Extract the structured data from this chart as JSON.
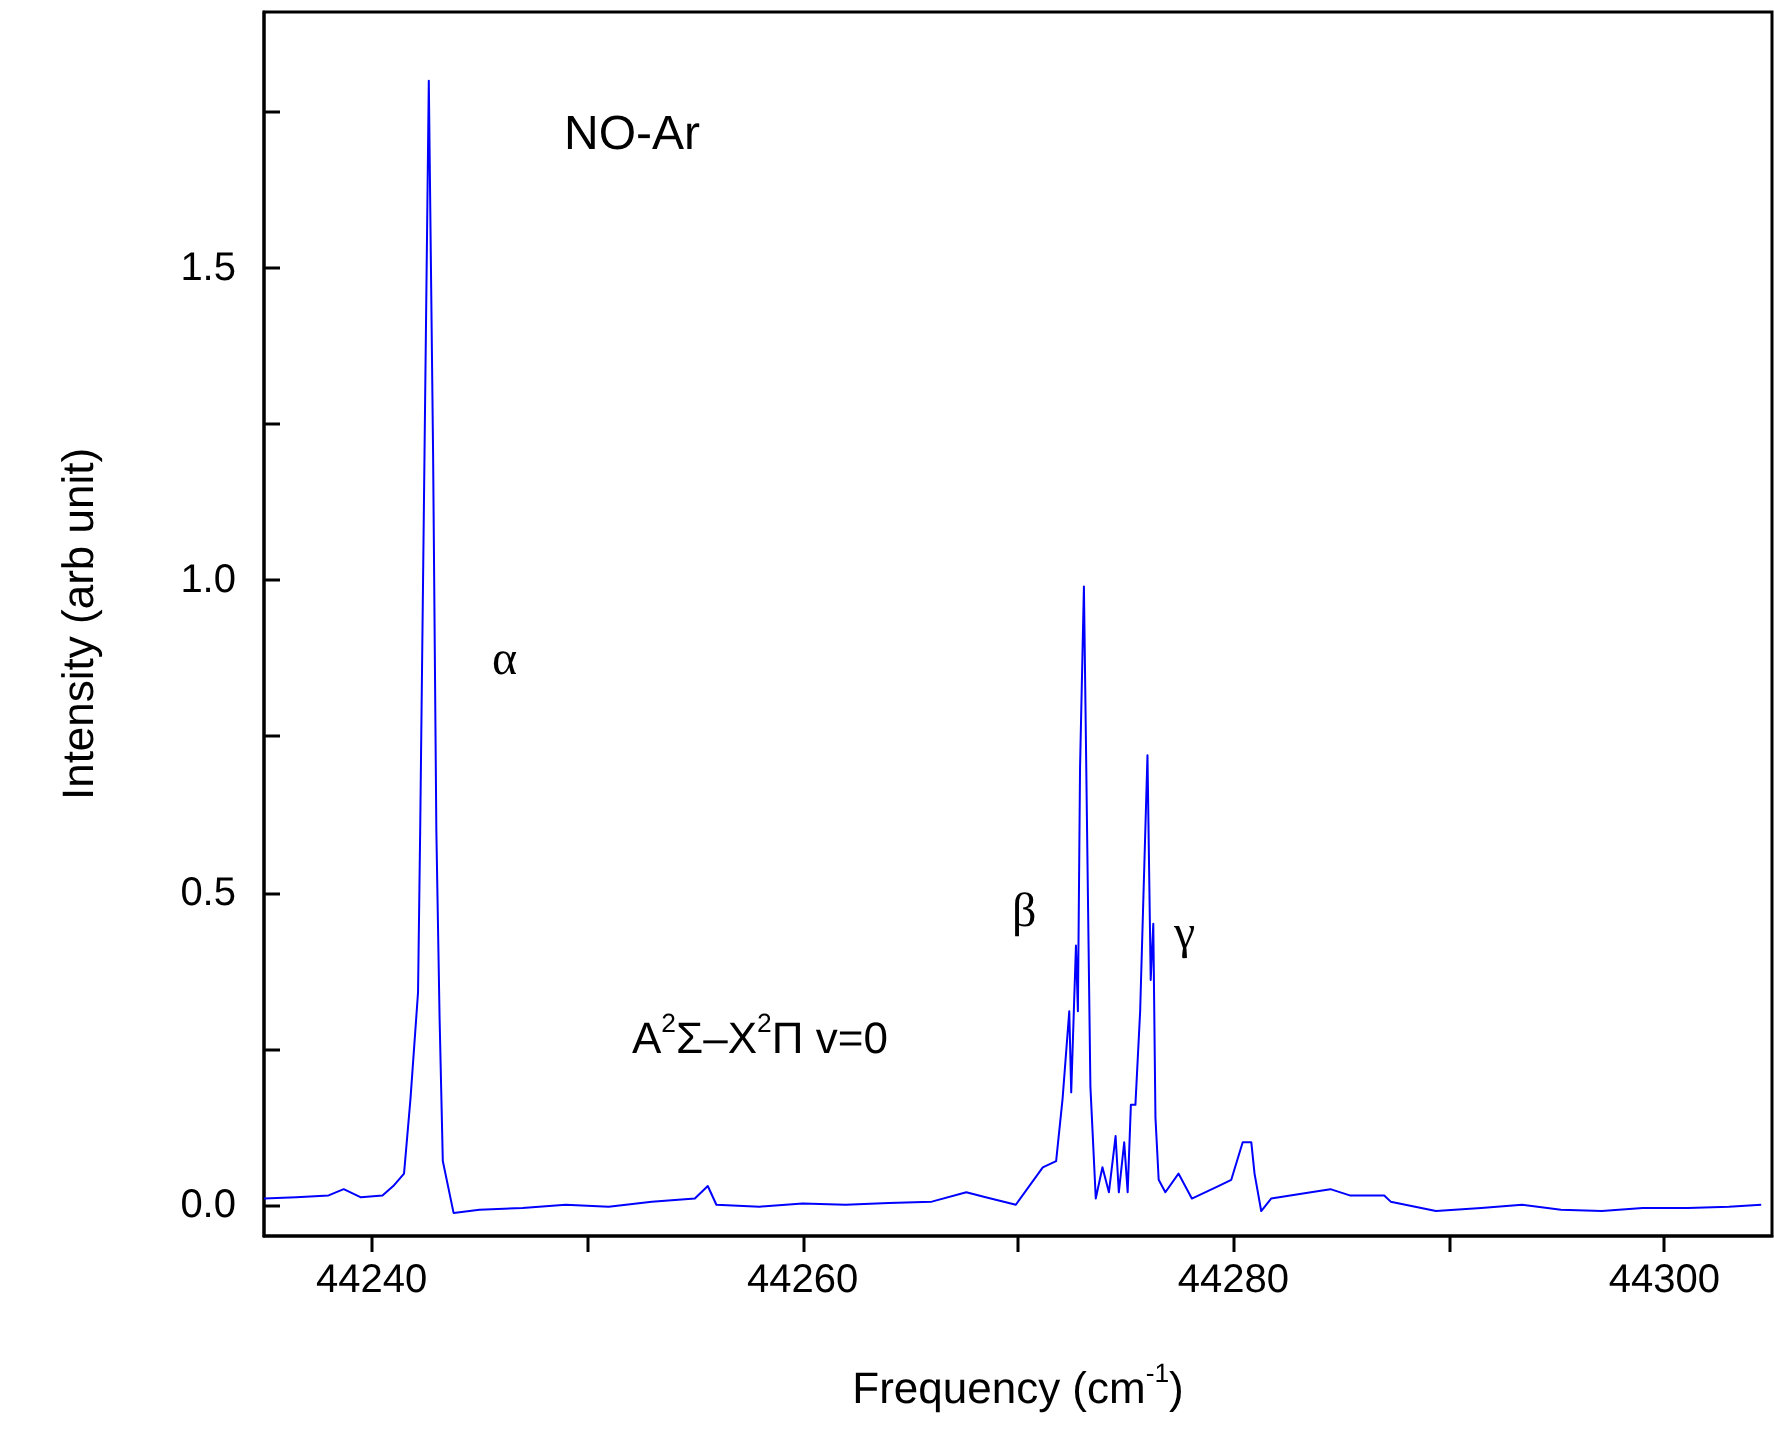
{
  "chart_data": {
    "type": "line",
    "title": "NO-Ar",
    "subtitle": "A$^{2}$Σ–X$^{2}$Π v=0",
    "xlabel": "Frequency (cm$^{-1}$)",
    "ylabel": "Intensity (arb unit)",
    "x": [
      44235,
      44236.5,
      44238,
      44238.7,
      44239.5,
      44240.5,
      44241.0,
      44241.5,
      44241.8,
      44242.15,
      44242.25,
      44242.45,
      44242.65,
      44242.85,
      44243.0,
      44243.15,
      44243.3,
      44243.8,
      44245,
      44247,
      44249,
      44251,
      44253,
      44255,
      44255.6,
      44256,
      44258,
      44260,
      44262,
      44264,
      44266,
      44267.6,
      44268.5,
      44269.9,
      44271.15,
      44271.77,
      44272.07,
      44272.38,
      44272.47,
      44272.69,
      44272.78,
      44272.88,
      44273.06,
      44273.24,
      44273.36,
      44273.61,
      44273.92,
      44274.22,
      44274.53,
      44274.68,
      44274.93,
      44275.09,
      44275.24,
      44275.45,
      44275.67,
      44276.01,
      44276.16,
      44276.28,
      44276.38,
      44276.53,
      44276.84,
      44277.45,
      44278.07,
      44279.3,
      44279.9,
      44280.43,
      44280.83,
      44280.98,
      44281.29,
      44281.75,
      44283.6,
      44284.5,
      44285.4,
      44287.0,
      44287.3,
      44289.4,
      44291.5,
      44293.4,
      44295.2,
      44297.1,
      44299,
      44301.1,
      44303,
      44304.5
    ],
    "series": [
      {
        "color": "#0000ff",
        "values": [
          0.01,
          0.012,
          0.015,
          0.025,
          0.012,
          0.015,
          0.03,
          0.05,
          0.17,
          0.34,
          0.6,
          1.2,
          1.8,
          1.2,
          0.6,
          0.3,
          0.07,
          -0.013,
          -0.008,
          -0.005,
          0.0,
          -0.003,
          0.005,
          0.01,
          0.03,
          0.0,
          -0.003,
          0.002,
          0.0,
          0.003,
          0.005,
          0.02,
          0.012,
          0.0,
          0.06,
          0.07,
          0.17,
          0.31,
          0.18,
          0.415,
          0.31,
          0.7,
          0.99,
          0.51,
          0.19,
          0.01,
          0.06,
          0.02,
          0.11,
          0.02,
          0.1,
          0.02,
          0.16,
          0.16,
          0.31,
          0.72,
          0.36,
          0.45,
          0.14,
          0.04,
          0.02,
          0.05,
          0.01,
          0.03,
          0.04,
          0.1,
          0.1,
          0.05,
          -0.01,
          0.01,
          0.02,
          0.025,
          0.015,
          0.015,
          0.005,
          -0.01,
          -0.005,
          0.0,
          -0.008,
          -0.01,
          -0.005,
          -0.005,
          -0.003,
          0.0
        ]
      }
    ],
    "xlim": [
      44235,
      44305
    ],
    "xticks": [
      {
        "value": 44240,
        "label": "44240"
      },
      {
        "value": 44250,
        "label": null
      },
      {
        "value": 44260,
        "label": "44260"
      },
      {
        "value": 44270,
        "label": null
      },
      {
        "value": 44280,
        "label": "44280"
      },
      {
        "value": 44290,
        "label": null
      },
      {
        "value": 44300,
        "label": "44300"
      }
    ],
    "ylim": [
      -0.05,
      1.91
    ],
    "yticks": [
      {
        "value": 0,
        "label": "0.0"
      },
      {
        "value": 0.25,
        "label": null
      },
      {
        "value": 0.5,
        "label": "0.5"
      },
      {
        "value": 0.75,
        "label": null
      },
      {
        "value": 1,
        "label": "1.0"
      },
      {
        "value": 1.25,
        "label": null
      },
      {
        "value": 1.5,
        "label": "1.5"
      },
      {
        "value": 1.75,
        "label": null
      }
    ],
    "annotations": [
      "α",
      "β",
      "γ"
    ],
    "grid": false,
    "marker": "none",
    "line_style": "solid"
  }
}
